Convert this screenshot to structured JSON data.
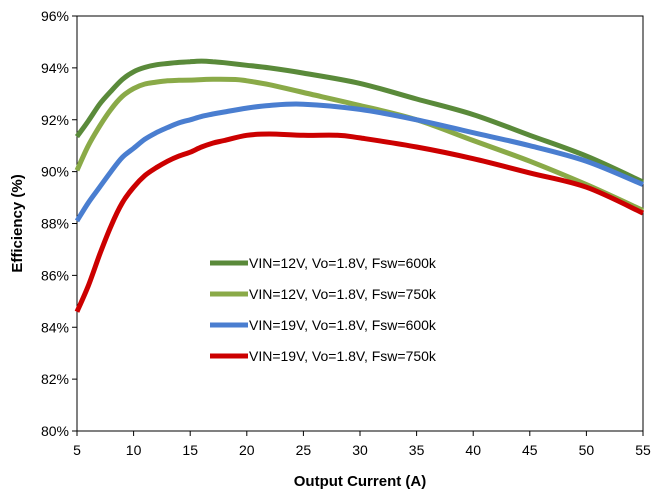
{
  "chart_data": {
    "type": "line",
    "xlabel": "Output Current (A)",
    "ylabel": "Efficiency (%)",
    "xlim": [
      5,
      55
    ],
    "ylim": [
      80,
      96
    ],
    "x_ticks": [
      5,
      10,
      15,
      20,
      25,
      30,
      35,
      40,
      45,
      50,
      55
    ],
    "y_ticks": [
      80,
      82,
      84,
      86,
      88,
      90,
      92,
      94,
      96
    ],
    "y_tick_suffix": "%",
    "grid": false,
    "legend_position": "center-left",
    "series": [
      {
        "name": "VIN=12V, Vo=1.8V, Fsw=600k",
        "color": "#5a8a3a",
        "x": [
          5,
          6,
          7,
          8,
          9,
          10,
          11,
          12,
          13,
          14,
          15,
          16,
          17,
          18,
          20,
          22,
          25,
          30,
          35,
          40,
          45,
          50,
          55
        ],
        "y": [
          91.35,
          91.95,
          92.6,
          93.1,
          93.55,
          93.85,
          94.02,
          94.12,
          94.17,
          94.21,
          94.24,
          94.26,
          94.24,
          94.2,
          94.1,
          94.0,
          93.8,
          93.4,
          92.8,
          92.2,
          91.4,
          90.6,
          89.6
        ]
      },
      {
        "name": "VIN=12V, Vo=1.8V, Fsw=750k",
        "color": "#8aaa48",
        "x": [
          5,
          6,
          7,
          8,
          9,
          10,
          11,
          12,
          13,
          14,
          15,
          17,
          19,
          20,
          22,
          25,
          30,
          35,
          40,
          45,
          50,
          55
        ],
        "y": [
          90.05,
          91.0,
          91.75,
          92.4,
          92.9,
          93.2,
          93.38,
          93.45,
          93.5,
          93.52,
          93.53,
          93.56,
          93.55,
          93.5,
          93.35,
          93.05,
          92.55,
          92.0,
          91.2,
          90.4,
          89.5,
          88.5
        ]
      },
      {
        "name": "VIN=19V, Vo=1.8V, Fsw=600k",
        "color": "#4a7ed0",
        "x": [
          5,
          6,
          7,
          8,
          9,
          10,
          11,
          12,
          13,
          14,
          15,
          16,
          17,
          18,
          20,
          22,
          25,
          30,
          35,
          40,
          45,
          50,
          55
        ],
        "y": [
          88.1,
          88.8,
          89.4,
          90.0,
          90.55,
          90.9,
          91.25,
          91.5,
          91.7,
          91.88,
          92.0,
          92.13,
          92.22,
          92.3,
          92.45,
          92.55,
          92.6,
          92.4,
          92.0,
          91.5,
          91.0,
          90.4,
          89.5
        ]
      },
      {
        "name": "VIN=19V, Vo=1.8V, Fsw=750k",
        "color": "#cc0000",
        "x": [
          5,
          6,
          7,
          8,
          9,
          10,
          11,
          12,
          13,
          14,
          15,
          16,
          17,
          18,
          20,
          22,
          25,
          28,
          30,
          35,
          40,
          45,
          50,
          55
        ],
        "y": [
          84.6,
          85.6,
          86.8,
          87.9,
          88.8,
          89.4,
          89.85,
          90.15,
          90.4,
          90.6,
          90.75,
          90.95,
          91.1,
          91.2,
          91.4,
          91.45,
          91.4,
          91.4,
          91.3,
          90.95,
          90.5,
          89.95,
          89.4,
          88.4
        ]
      }
    ]
  }
}
